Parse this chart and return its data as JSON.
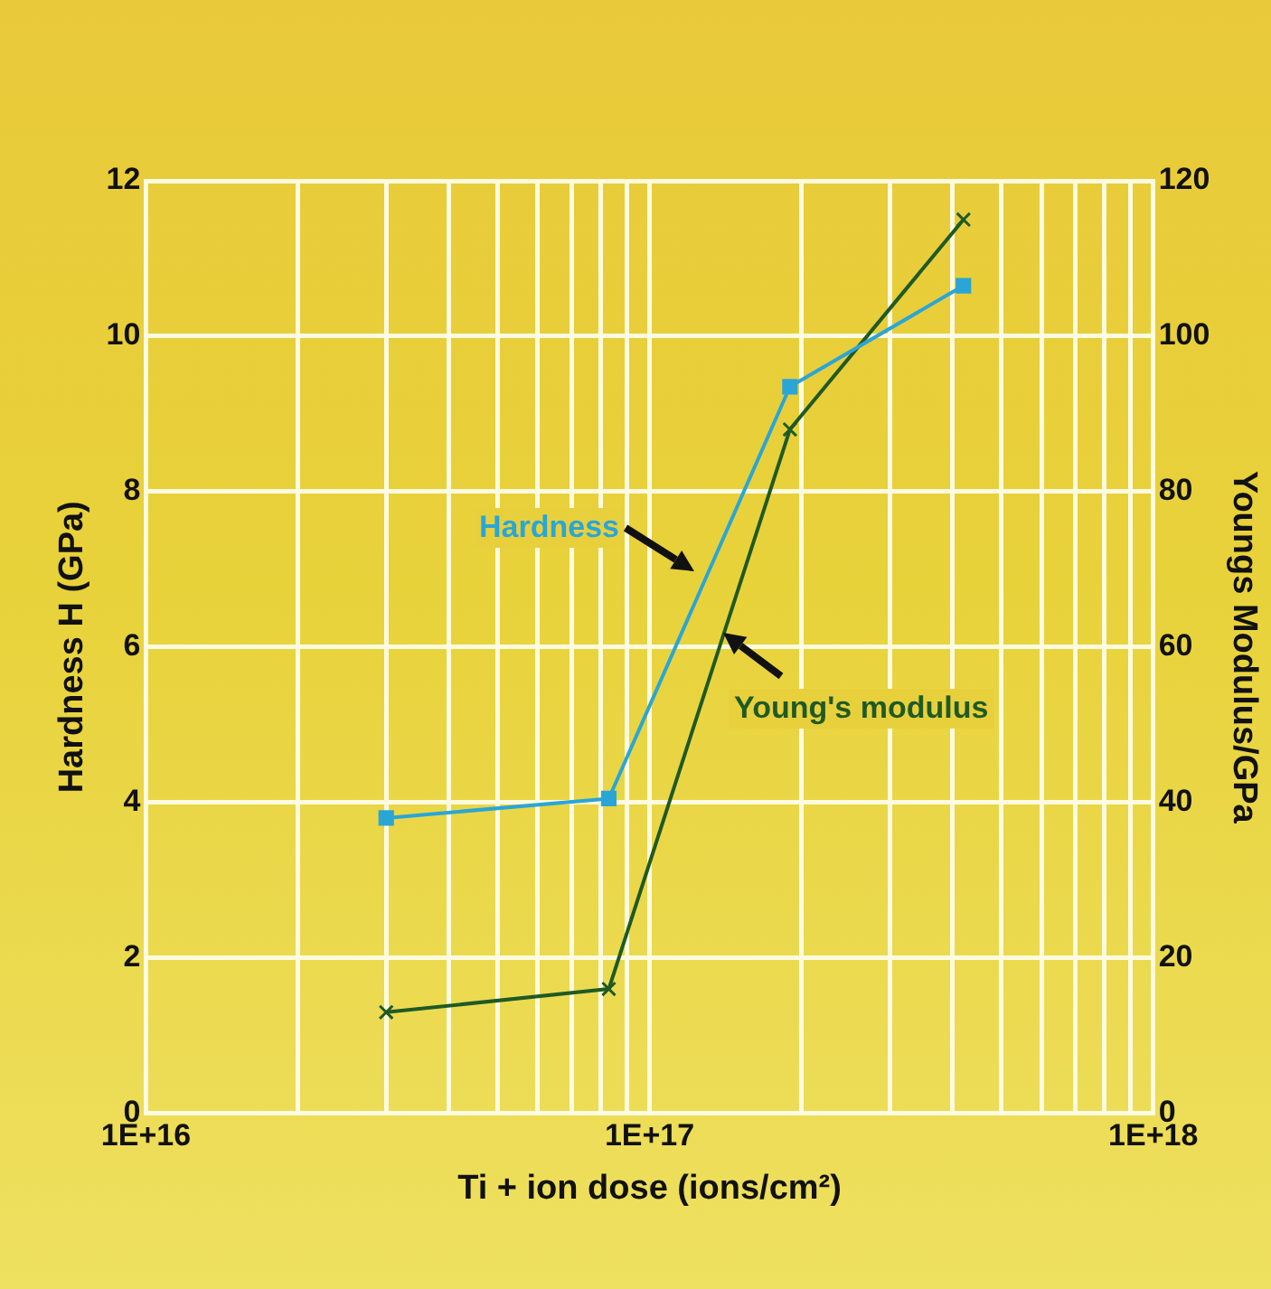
{
  "chart_data": {
    "type": "line",
    "xlabel": "Ti + ion dose (ions/cm²)",
    "ylabel": "Hardness H (GPa)",
    "y2label": "Youngs Modulus/GPa",
    "x": [
      3e+16,
      8.3e+16,
      1.9e+17,
      4.2e+17
    ],
    "series": [
      {
        "name": "Hardness",
        "color": "#2aa6d6",
        "marker": "square",
        "values": [
          3.8,
          4.05,
          9.35,
          10.65
        ]
      },
      {
        "name": "Young's modulus",
        "color": "#1f5a24",
        "marker": "cross",
        "axis": "y2",
        "values": [
          13,
          16,
          88,
          115
        ]
      }
    ],
    "log": "x",
    "xlim": [
      1e+16,
      1e+18
    ],
    "xticks": [
      {
        "value": 1e+16,
        "label": "1E+16"
      },
      {
        "value": 2e+16,
        "label": null
      },
      {
        "value": 3e+16,
        "label": null
      },
      {
        "value": 4e+16,
        "label": null
      },
      {
        "value": 5e+16,
        "label": null
      },
      {
        "value": 6e+16,
        "label": null
      },
      {
        "value": 7e+16,
        "label": null
      },
      {
        "value": 8e+16,
        "label": null
      },
      {
        "value": 9e+16,
        "label": null
      },
      {
        "value": 1e+17,
        "label": "1E+17"
      },
      {
        "value": 2e+17,
        "label": null
      },
      {
        "value": 3e+17,
        "label": null
      },
      {
        "value": 4e+17,
        "label": null
      },
      {
        "value": 5e+17,
        "label": null
      },
      {
        "value": 6e+17,
        "label": null
      },
      {
        "value": 7e+17,
        "label": null
      },
      {
        "value": 8e+17,
        "label": null
      },
      {
        "value": 9e+17,
        "label": null
      },
      {
        "value": 1e+18,
        "label": "1E+18"
      }
    ],
    "ylim": [
      0,
      12
    ],
    "yticks": [
      0,
      2,
      4,
      6,
      8,
      10,
      12
    ],
    "y2lim": [
      0,
      120
    ],
    "y2ticks": [
      0,
      20,
      40,
      60,
      80,
      100,
      120
    ],
    "grid": true,
    "legend": false
  }
}
